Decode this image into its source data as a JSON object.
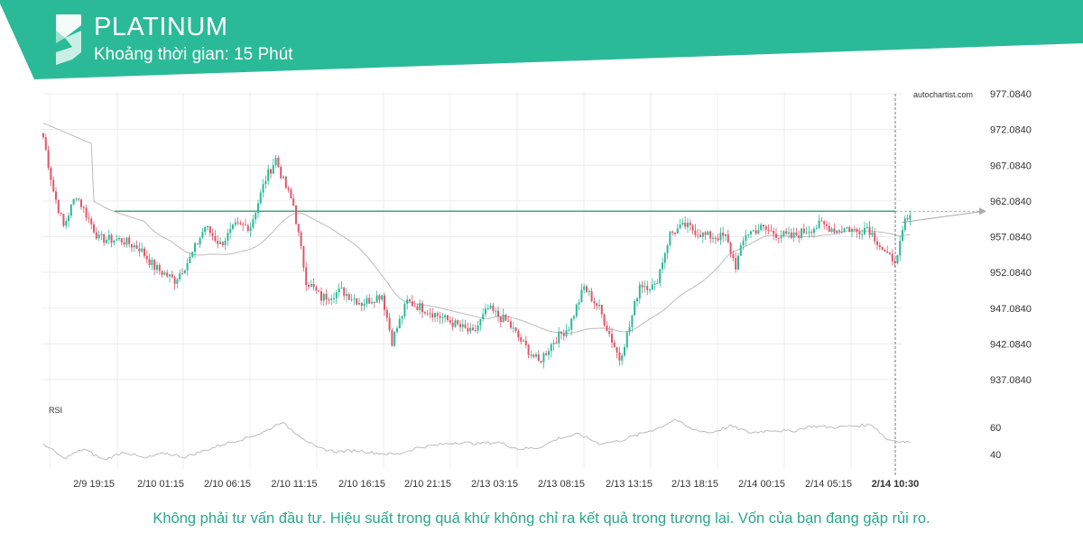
{
  "header": {
    "title": "PLATINUM",
    "subtitle": "Khoảng thời gian: 15 Phút",
    "brand_color": "#2bba97",
    "logo_icon": "autochartist-s-logo-icon"
  },
  "watermark": "autochartist.com",
  "disclaimer": "Không phải tư vấn đầu tư. Hiệu suất trong quá khứ không chỉ ra kết quả trong tương lai. Vốn của bạn đang gặp rủi ro.",
  "colors": {
    "up": "#2bba97",
    "down": "#e0566a",
    "level": "#3cad75",
    "ma": "#bcbcbc",
    "rsi": "#bcbcbc"
  },
  "chart_data": {
    "type": "candlestick",
    "symbol": "PLATINUM",
    "interval": "15 Phút",
    "y_ticks": [
      "977.0840",
      "972.0840",
      "967.0840",
      "962.0840",
      "957.0840",
      "952.0840",
      "947.0840",
      "942.0840",
      "937.0840"
    ],
    "ylim": [
      934.6,
      979.1
    ],
    "x_ticks": [
      "2/9 19:15",
      "2/10 01:15",
      "2/10 06:15",
      "2/10 11:15",
      "2/10 16:15",
      "2/10 21:15",
      "2/13 03:15",
      "2/13 08:15",
      "2/13 13:15",
      "2/13 18:15",
      "2/14 00:15",
      "2/14 05:15"
    ],
    "current_time_label": "2/14 10:30",
    "resistance_level": 960.65,
    "projection_target": 960.65,
    "price_anchors": [
      {
        "bar": 0,
        "price": 971.0
      },
      {
        "bar": 4,
        "price": 963.5
      },
      {
        "bar": 8,
        "price": 958.5
      },
      {
        "bar": 13,
        "price": 963.0
      },
      {
        "bar": 18,
        "price": 959.5
      },
      {
        "bar": 22,
        "price": 956.8
      },
      {
        "bar": 31,
        "price": 956.6
      },
      {
        "bar": 38,
        "price": 955.5
      },
      {
        "bar": 44,
        "price": 952.8
      },
      {
        "bar": 52,
        "price": 951.0
      },
      {
        "bar": 58,
        "price": 954.0
      },
      {
        "bar": 64,
        "price": 958.5
      },
      {
        "bar": 70,
        "price": 956.0
      },
      {
        "bar": 76,
        "price": 958.5
      },
      {
        "bar": 82,
        "price": 958.6
      },
      {
        "bar": 88,
        "price": 965.2
      },
      {
        "bar": 92,
        "price": 968.0
      },
      {
        "bar": 95,
        "price": 964.8
      },
      {
        "bar": 99,
        "price": 961.5
      },
      {
        "bar": 104,
        "price": 951.0
      },
      {
        "bar": 110,
        "price": 948.5
      },
      {
        "bar": 118,
        "price": 949.5
      },
      {
        "bar": 126,
        "price": 947.8
      },
      {
        "bar": 134,
        "price": 949.0
      },
      {
        "bar": 138,
        "price": 942.5
      },
      {
        "bar": 144,
        "price": 948.0
      },
      {
        "bar": 152,
        "price": 946.8
      },
      {
        "bar": 162,
        "price": 945.0
      },
      {
        "bar": 170,
        "price": 943.5
      },
      {
        "bar": 176,
        "price": 947.0
      },
      {
        "bar": 184,
        "price": 945.0
      },
      {
        "bar": 190,
        "price": 942.0
      },
      {
        "bar": 196,
        "price": 939.5
      },
      {
        "bar": 202,
        "price": 942.5
      },
      {
        "bar": 208,
        "price": 944.5
      },
      {
        "bar": 214,
        "price": 950.0
      },
      {
        "bar": 220,
        "price": 947.0
      },
      {
        "bar": 228,
        "price": 940.0
      },
      {
        "bar": 232,
        "price": 944.5
      },
      {
        "bar": 236,
        "price": 950.5
      },
      {
        "bar": 242,
        "price": 950.0
      },
      {
        "bar": 248,
        "price": 957.5
      },
      {
        "bar": 254,
        "price": 958.6
      },
      {
        "bar": 262,
        "price": 957.2
      },
      {
        "bar": 270,
        "price": 957.0
      },
      {
        "bar": 274,
        "price": 953.0
      },
      {
        "bar": 278,
        "price": 957.5
      },
      {
        "bar": 284,
        "price": 958.3
      },
      {
        "bar": 290,
        "price": 957.5
      },
      {
        "bar": 296,
        "price": 957.0
      },
      {
        "bar": 302,
        "price": 958.0
      },
      {
        "bar": 308,
        "price": 958.8
      },
      {
        "bar": 314,
        "price": 958.0
      },
      {
        "bar": 318,
        "price": 958.3
      },
      {
        "bar": 322,
        "price": 957.8
      },
      {
        "bar": 326,
        "price": 958.5
      },
      {
        "bar": 330,
        "price": 956.5
      },
      {
        "bar": 334,
        "price": 954.2
      },
      {
        "bar": 338,
        "price": 954.0
      },
      {
        "bar": 341,
        "price": 959.3
      },
      {
        "bar": 343,
        "price": 959.5
      }
    ],
    "rsi": {
      "label": "RSI",
      "ticks": [
        "60",
        "40"
      ],
      "ylim": [
        28,
        78
      ],
      "anchors": [
        {
          "bar": 0,
          "value": 48
        },
        {
          "bar": 8,
          "value": 37
        },
        {
          "bar": 16,
          "value": 44
        },
        {
          "bar": 24,
          "value": 36
        },
        {
          "bar": 32,
          "value": 42
        },
        {
          "bar": 40,
          "value": 37
        },
        {
          "bar": 48,
          "value": 41
        },
        {
          "bar": 56,
          "value": 38
        },
        {
          "bar": 64,
          "value": 43
        },
        {
          "bar": 72,
          "value": 48
        },
        {
          "bar": 80,
          "value": 52
        },
        {
          "bar": 88,
          "value": 57
        },
        {
          "bar": 94,
          "value": 64
        },
        {
          "bar": 100,
          "value": 56
        },
        {
          "bar": 108,
          "value": 45
        },
        {
          "bar": 116,
          "value": 42
        },
        {
          "bar": 124,
          "value": 43
        },
        {
          "bar": 132,
          "value": 41
        },
        {
          "bar": 140,
          "value": 40
        },
        {
          "bar": 148,
          "value": 45
        },
        {
          "bar": 156,
          "value": 47
        },
        {
          "bar": 164,
          "value": 49
        },
        {
          "bar": 172,
          "value": 48
        },
        {
          "bar": 180,
          "value": 49
        },
        {
          "bar": 188,
          "value": 44
        },
        {
          "bar": 196,
          "value": 45
        },
        {
          "bar": 204,
          "value": 52
        },
        {
          "bar": 212,
          "value": 55
        },
        {
          "bar": 220,
          "value": 48
        },
        {
          "bar": 228,
          "value": 50
        },
        {
          "bar": 236,
          "value": 55
        },
        {
          "bar": 244,
          "value": 60
        },
        {
          "bar": 250,
          "value": 66
        },
        {
          "bar": 256,
          "value": 59
        },
        {
          "bar": 264,
          "value": 56
        },
        {
          "bar": 272,
          "value": 61
        },
        {
          "bar": 280,
          "value": 56
        },
        {
          "bar": 288,
          "value": 58
        },
        {
          "bar": 296,
          "value": 57
        },
        {
          "bar": 304,
          "value": 61
        },
        {
          "bar": 312,
          "value": 60
        },
        {
          "bar": 320,
          "value": 61
        },
        {
          "bar": 328,
          "value": 62
        },
        {
          "bar": 334,
          "value": 51
        },
        {
          "bar": 338,
          "value": 50
        },
        {
          "bar": 343,
          "value": 49
        }
      ]
    }
  }
}
